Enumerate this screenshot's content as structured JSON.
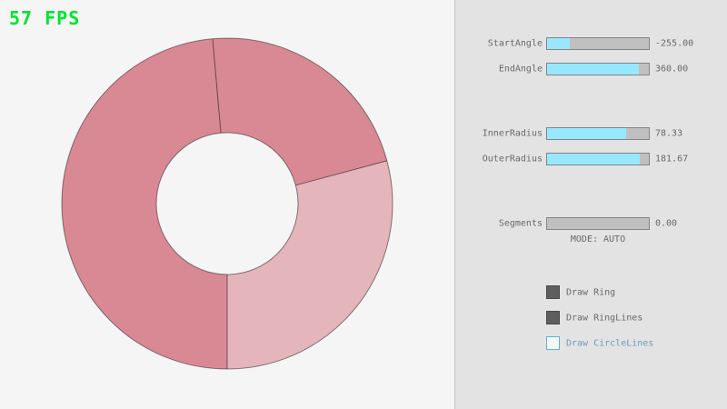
{
  "fps": {
    "text": "57 FPS",
    "color": "#00e430"
  },
  "ring": {
    "colors": {
      "dark": "#d98994",
      "light": "#e5b5bc",
      "outline": "rgba(0,0,0,0.45)",
      "line": "rgba(0,0,0,0.5)"
    }
  },
  "panel": {
    "sliders": [
      {
        "label": "StartAngle",
        "value": "-255.00",
        "fill_percent": 22
      },
      {
        "label": "EndAngle",
        "value": "360.00",
        "fill_percent": 90
      },
      {
        "label": "InnerRadius",
        "value": "78.33",
        "fill_percent": 78
      },
      {
        "label": "OuterRadius",
        "value": "181.67",
        "fill_percent": 91
      },
      {
        "label": "Segments",
        "value": "0.00",
        "fill_percent": 0
      }
    ],
    "mode_text": "MODE: AUTO",
    "checkboxes": [
      {
        "label": "Draw Ring",
        "checked": true
      },
      {
        "label": "Draw RingLines",
        "checked": true
      },
      {
        "label": "Draw CircleLines",
        "checked": false
      }
    ],
    "colors": {
      "accent": "#97e8ff",
      "track": "#c0c0c0",
      "border": "#848484",
      "text": "#686868",
      "focus_border": "#5bb2d9",
      "focus_text": "#6c9bbc"
    }
  }
}
